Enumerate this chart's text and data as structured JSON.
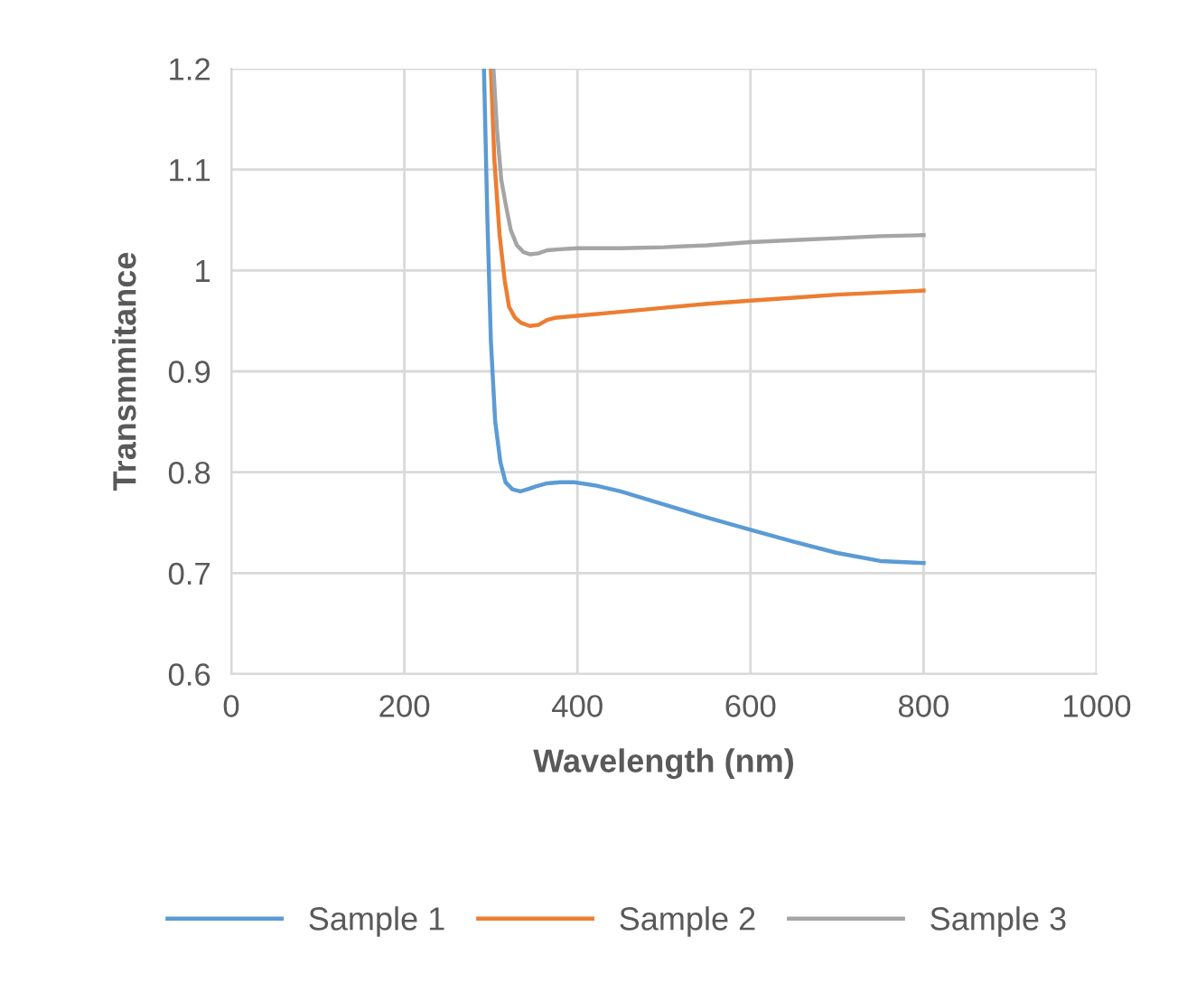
{
  "chart_data": {
    "type": "line",
    "xlabel": "Wavelength (nm)",
    "ylabel": "Transmmitance",
    "xlim": [
      0,
      1000
    ],
    "xticks": [
      0,
      200,
      400,
      600,
      800,
      1000
    ],
    "ylim": [
      0.6,
      1.2
    ],
    "yticks": [
      0.6,
      0.7,
      0.8,
      0.9,
      {
        "value": 1,
        "label": "1"
      },
      1.1,
      1.2
    ],
    "grid": true,
    "legend": "bottom",
    "marker": "none",
    "line_style": "solid",
    "series": [
      {
        "name": "Sample 1",
        "color": "#5b9bd5",
        "x": [
          292,
          296,
          300,
          305,
          311,
          317,
          325,
          334,
          342,
          352,
          365,
          380,
          397,
          420,
          450,
          500,
          550,
          600,
          650,
          700,
          750,
          800
        ],
        "values": [
          1.2,
          1.05,
          0.93,
          0.85,
          0.81,
          0.79,
          0.783,
          0.781,
          0.783,
          0.786,
          0.789,
          0.79,
          0.79,
          0.787,
          0.781,
          0.768,
          0.755,
          0.743,
          0.731,
          0.72,
          0.712,
          0.71
        ]
      },
      {
        "name": "Sample 2",
        "color": "#ed7d31",
        "x": [
          300,
          304,
          310,
          316,
          321,
          328,
          335,
          345,
          355,
          365,
          374,
          400,
          450,
          500,
          550,
          600,
          650,
          700,
          750,
          800
        ],
        "values": [
          1.2,
          1.11,
          1.036,
          0.99,
          0.964,
          0.953,
          0.948,
          0.945,
          0.946,
          0.951,
          0.953,
          0.955,
          0.959,
          0.963,
          0.967,
          0.97,
          0.973,
          0.976,
          0.978,
          0.98
        ]
      },
      {
        "name": "Sample 3",
        "color": "#a5a5a5",
        "x": [
          303,
          307,
          312,
          317,
          323,
          330,
          338,
          345,
          355,
          365,
          380,
          400,
          450,
          500,
          550,
          600,
          650,
          700,
          750,
          800
        ],
        "values": [
          1.2,
          1.14,
          1.09,
          1.066,
          1.04,
          1.025,
          1.018,
          1.016,
          1.017,
          1.02,
          1.021,
          1.022,
          1.022,
          1.023,
          1.025,
          1.028,
          1.03,
          1.032,
          1.034,
          1.035
        ]
      }
    ]
  }
}
